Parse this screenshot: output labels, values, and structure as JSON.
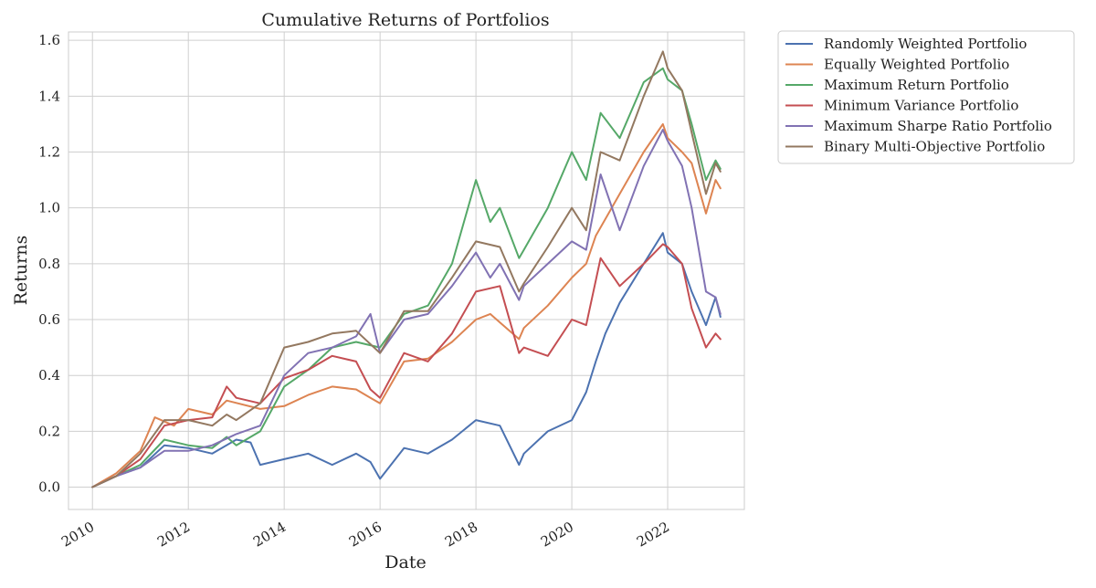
{
  "chart_data": {
    "type": "line",
    "title": "Cumulative Returns of Portfolios",
    "xlabel": "Date",
    "ylabel": "Returns",
    "xlim": [
      2009.5,
      2023.6
    ],
    "ylim": [
      -0.08,
      1.63
    ],
    "x_ticks": [
      2010,
      2012,
      2014,
      2016,
      2018,
      2020,
      2022
    ],
    "x_tick_labels": [
      "2010",
      "2012",
      "2014",
      "2016",
      "2018",
      "2020",
      "2022"
    ],
    "y_ticks": [
      0.0,
      0.2,
      0.4,
      0.6,
      0.8,
      1.0,
      1.2,
      1.4,
      1.6
    ],
    "y_tick_labels": [
      "0.0",
      "0.2",
      "0.4",
      "0.6",
      "0.8",
      "1.0",
      "1.2",
      "1.4",
      "1.6"
    ],
    "grid": true,
    "legend_position": "outside-top-right",
    "series": [
      {
        "name": "Randomly Weighted Portfolio",
        "color": "#4c72b0",
        "points": [
          [
            2010.0,
            0.0
          ],
          [
            2010.5,
            0.04
          ],
          [
            2011.0,
            0.07
          ],
          [
            2011.5,
            0.15
          ],
          [
            2012.0,
            0.14
          ],
          [
            2012.5,
            0.12
          ],
          [
            2013.0,
            0.17
          ],
          [
            2013.3,
            0.16
          ],
          [
            2013.5,
            0.08
          ],
          [
            2014.0,
            0.1
          ],
          [
            2014.5,
            0.12
          ],
          [
            2015.0,
            0.08
          ],
          [
            2015.5,
            0.12
          ],
          [
            2015.8,
            0.09
          ],
          [
            2016.0,
            0.03
          ],
          [
            2016.5,
            0.14
          ],
          [
            2017.0,
            0.12
          ],
          [
            2017.5,
            0.17
          ],
          [
            2018.0,
            0.24
          ],
          [
            2018.5,
            0.22
          ],
          [
            2018.9,
            0.08
          ],
          [
            2019.0,
            0.12
          ],
          [
            2019.5,
            0.2
          ],
          [
            2020.0,
            0.24
          ],
          [
            2020.3,
            0.34
          ],
          [
            2020.5,
            0.45
          ],
          [
            2020.7,
            0.55
          ],
          [
            2021.0,
            0.66
          ],
          [
            2021.5,
            0.8
          ],
          [
            2021.9,
            0.91
          ],
          [
            2022.0,
            0.84
          ],
          [
            2022.3,
            0.8
          ],
          [
            2022.5,
            0.7
          ],
          [
            2022.8,
            0.58
          ],
          [
            2023.0,
            0.68
          ],
          [
            2023.1,
            0.61
          ]
        ]
      },
      {
        "name": "Equally Weighted Portfolio",
        "color": "#dd8452",
        "points": [
          [
            2010.0,
            0.0
          ],
          [
            2010.5,
            0.05
          ],
          [
            2011.0,
            0.13
          ],
          [
            2011.3,
            0.25
          ],
          [
            2011.7,
            0.22
          ],
          [
            2012.0,
            0.28
          ],
          [
            2012.5,
            0.26
          ],
          [
            2012.8,
            0.31
          ],
          [
            2013.5,
            0.28
          ],
          [
            2014.0,
            0.29
          ],
          [
            2014.5,
            0.33
          ],
          [
            2015.0,
            0.36
          ],
          [
            2015.5,
            0.35
          ],
          [
            2015.8,
            0.32
          ],
          [
            2016.0,
            0.3
          ],
          [
            2016.5,
            0.45
          ],
          [
            2017.0,
            0.46
          ],
          [
            2017.5,
            0.52
          ],
          [
            2018.0,
            0.6
          ],
          [
            2018.3,
            0.62
          ],
          [
            2018.5,
            0.59
          ],
          [
            2018.9,
            0.53
          ],
          [
            2019.0,
            0.57
          ],
          [
            2019.5,
            0.65
          ],
          [
            2020.0,
            0.75
          ],
          [
            2020.3,
            0.8
          ],
          [
            2020.5,
            0.9
          ],
          [
            2021.0,
            1.05
          ],
          [
            2021.5,
            1.2
          ],
          [
            2021.9,
            1.3
          ],
          [
            2022.0,
            1.25
          ],
          [
            2022.3,
            1.2
          ],
          [
            2022.5,
            1.16
          ],
          [
            2022.8,
            0.98
          ],
          [
            2023.0,
            1.1
          ],
          [
            2023.1,
            1.07
          ]
        ]
      },
      {
        "name": "Maximum Return Portfolio",
        "color": "#55a868",
        "points": [
          [
            2010.0,
            0.0
          ],
          [
            2010.5,
            0.04
          ],
          [
            2011.0,
            0.08
          ],
          [
            2011.5,
            0.17
          ],
          [
            2012.0,
            0.15
          ],
          [
            2012.5,
            0.14
          ],
          [
            2012.8,
            0.18
          ],
          [
            2013.0,
            0.15
          ],
          [
            2013.5,
            0.2
          ],
          [
            2014.0,
            0.36
          ],
          [
            2014.5,
            0.42
          ],
          [
            2015.0,
            0.5
          ],
          [
            2015.5,
            0.52
          ],
          [
            2016.0,
            0.5
          ],
          [
            2016.5,
            0.62
          ],
          [
            2017.0,
            0.65
          ],
          [
            2017.5,
            0.8
          ],
          [
            2018.0,
            1.1
          ],
          [
            2018.3,
            0.95
          ],
          [
            2018.5,
            1.0
          ],
          [
            2018.9,
            0.82
          ],
          [
            2019.0,
            0.85
          ],
          [
            2019.5,
            1.0
          ],
          [
            2020.0,
            1.2
          ],
          [
            2020.3,
            1.1
          ],
          [
            2020.6,
            1.34
          ],
          [
            2021.0,
            1.25
          ],
          [
            2021.5,
            1.45
          ],
          [
            2021.9,
            1.5
          ],
          [
            2022.0,
            1.46
          ],
          [
            2022.3,
            1.42
          ],
          [
            2022.5,
            1.3
          ],
          [
            2022.8,
            1.1
          ],
          [
            2023.0,
            1.17
          ],
          [
            2023.1,
            1.14
          ]
        ]
      },
      {
        "name": "Minimum Variance Portfolio",
        "color": "#c44e52",
        "points": [
          [
            2010.0,
            0.0
          ],
          [
            2010.5,
            0.04
          ],
          [
            2011.0,
            0.1
          ],
          [
            2011.5,
            0.22
          ],
          [
            2012.0,
            0.24
          ],
          [
            2012.5,
            0.25
          ],
          [
            2012.8,
            0.36
          ],
          [
            2013.0,
            0.32
          ],
          [
            2013.5,
            0.3
          ],
          [
            2014.0,
            0.39
          ],
          [
            2014.5,
            0.42
          ],
          [
            2015.0,
            0.47
          ],
          [
            2015.5,
            0.45
          ],
          [
            2015.8,
            0.35
          ],
          [
            2016.0,
            0.32
          ],
          [
            2016.5,
            0.48
          ],
          [
            2017.0,
            0.45
          ],
          [
            2017.5,
            0.55
          ],
          [
            2018.0,
            0.7
          ],
          [
            2018.5,
            0.72
          ],
          [
            2018.9,
            0.48
          ],
          [
            2019.0,
            0.5
          ],
          [
            2019.5,
            0.47
          ],
          [
            2020.0,
            0.6
          ],
          [
            2020.3,
            0.58
          ],
          [
            2020.6,
            0.82
          ],
          [
            2021.0,
            0.72
          ],
          [
            2021.5,
            0.8
          ],
          [
            2021.9,
            0.87
          ],
          [
            2022.0,
            0.86
          ],
          [
            2022.3,
            0.8
          ],
          [
            2022.5,
            0.64
          ],
          [
            2022.8,
            0.5
          ],
          [
            2023.0,
            0.55
          ],
          [
            2023.1,
            0.53
          ]
        ]
      },
      {
        "name": "Maximum Sharpe Ratio Portfolio",
        "color": "#8172b3",
        "points": [
          [
            2010.0,
            0.0
          ],
          [
            2010.5,
            0.04
          ],
          [
            2011.0,
            0.07
          ],
          [
            2011.5,
            0.13
          ],
          [
            2012.0,
            0.13
          ],
          [
            2012.5,
            0.15
          ],
          [
            2013.0,
            0.19
          ],
          [
            2013.5,
            0.22
          ],
          [
            2014.0,
            0.4
          ],
          [
            2014.5,
            0.48
          ],
          [
            2015.0,
            0.5
          ],
          [
            2015.5,
            0.54
          ],
          [
            2015.8,
            0.62
          ],
          [
            2016.0,
            0.48
          ],
          [
            2016.5,
            0.6
          ],
          [
            2017.0,
            0.62
          ],
          [
            2017.5,
            0.72
          ],
          [
            2018.0,
            0.84
          ],
          [
            2018.3,
            0.75
          ],
          [
            2018.5,
            0.8
          ],
          [
            2018.9,
            0.67
          ],
          [
            2019.0,
            0.72
          ],
          [
            2019.5,
            0.8
          ],
          [
            2020.0,
            0.88
          ],
          [
            2020.3,
            0.85
          ],
          [
            2020.6,
            1.12
          ],
          [
            2021.0,
            0.92
          ],
          [
            2021.5,
            1.15
          ],
          [
            2021.9,
            1.28
          ],
          [
            2022.0,
            1.24
          ],
          [
            2022.3,
            1.15
          ],
          [
            2022.5,
            1.0
          ],
          [
            2022.8,
            0.7
          ],
          [
            2023.0,
            0.68
          ],
          [
            2023.1,
            0.62
          ]
        ]
      },
      {
        "name": "Binary Multi-Objective Portfolio",
        "color": "#937860",
        "points": [
          [
            2010.0,
            0.0
          ],
          [
            2010.5,
            0.04
          ],
          [
            2011.0,
            0.12
          ],
          [
            2011.5,
            0.24
          ],
          [
            2012.0,
            0.24
          ],
          [
            2012.5,
            0.22
          ],
          [
            2012.8,
            0.26
          ],
          [
            2013.0,
            0.24
          ],
          [
            2013.5,
            0.3
          ],
          [
            2014.0,
            0.5
          ],
          [
            2014.5,
            0.52
          ],
          [
            2015.0,
            0.55
          ],
          [
            2015.5,
            0.56
          ],
          [
            2016.0,
            0.48
          ],
          [
            2016.5,
            0.63
          ],
          [
            2017.0,
            0.63
          ],
          [
            2017.5,
            0.75
          ],
          [
            2018.0,
            0.88
          ],
          [
            2018.5,
            0.86
          ],
          [
            2018.9,
            0.7
          ],
          [
            2019.0,
            0.73
          ],
          [
            2019.5,
            0.86
          ],
          [
            2020.0,
            1.0
          ],
          [
            2020.3,
            0.92
          ],
          [
            2020.6,
            1.2
          ],
          [
            2021.0,
            1.17
          ],
          [
            2021.5,
            1.4
          ],
          [
            2021.9,
            1.56
          ],
          [
            2022.0,
            1.5
          ],
          [
            2022.3,
            1.42
          ],
          [
            2022.5,
            1.27
          ],
          [
            2022.8,
            1.05
          ],
          [
            2023.0,
            1.16
          ],
          [
            2023.1,
            1.13
          ]
        ]
      }
    ]
  }
}
